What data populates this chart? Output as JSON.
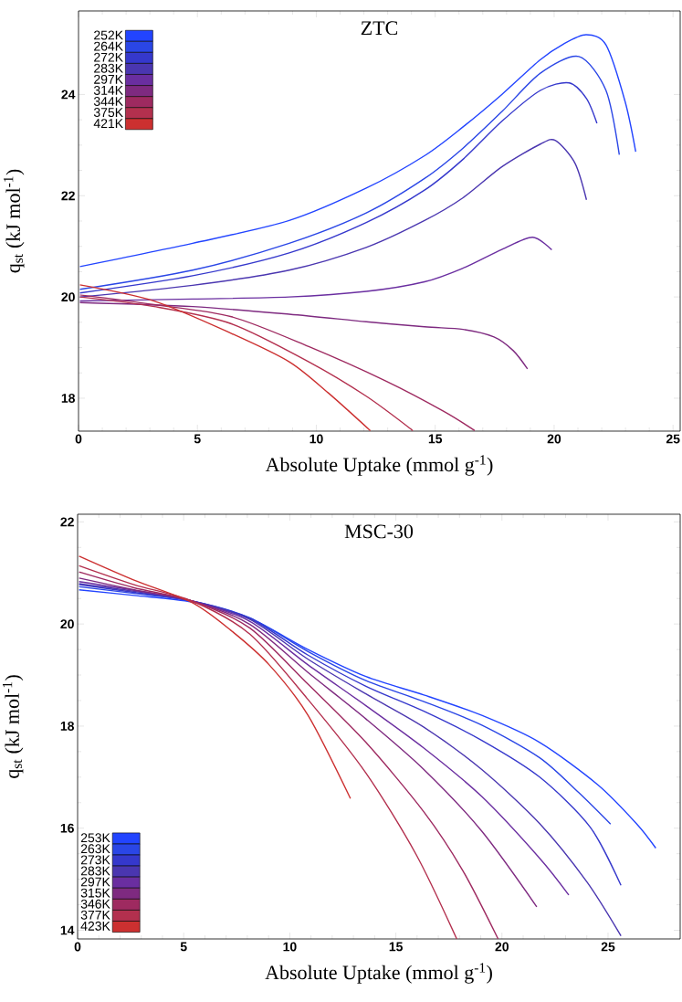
{
  "chart_data": [
    {
      "type": "line",
      "title": "ZTC",
      "xlabel": "Absolute Uptake (mmol g$^{-1}$)",
      "ylabel": "q$_{st}$ (kJ mol$^{-1}$)",
      "xlim": [
        0,
        25.3
      ],
      "ylim": [
        17.35,
        25.65
      ],
      "xticks": [
        0,
        5,
        10,
        15,
        20,
        25
      ],
      "yticks": [
        18,
        20,
        22,
        24
      ],
      "legend": "top left",
      "series": [
        {
          "name": "252K",
          "color": "#2244ff",
          "x": [
            0.06,
            4.8,
            8.86,
            12.1,
            14.55,
            16.17,
            17.8,
            19.4,
            20.4,
            21.35,
            22.18,
            22.99,
            23.43
          ],
          "values": [
            20.6,
            21.06,
            21.51,
            22.15,
            22.79,
            23.36,
            24.0,
            24.68,
            25.0,
            25.18,
            24.98,
            23.85,
            22.87
          ]
        },
        {
          "name": "264K",
          "color": "#2a46e6",
          "x": [
            0.06,
            4.8,
            8.86,
            12.1,
            14.55,
            16.17,
            17.8,
            19.42,
            21.04,
            22.18,
            22.74
          ],
          "values": [
            20.15,
            20.53,
            21.06,
            21.66,
            22.34,
            22.94,
            23.66,
            24.42,
            24.75,
            24.08,
            22.81
          ]
        },
        {
          "name": "272K",
          "color": "#3538cc",
          "x": [
            0.06,
            4.8,
            8.86,
            12.1,
            14.55,
            16.17,
            17.8,
            19.42,
            20.63,
            21.36,
            21.8
          ],
          "values": [
            20.08,
            20.42,
            20.87,
            21.47,
            22.11,
            22.72,
            23.47,
            24.08,
            24.23,
            23.92,
            23.43
          ]
        },
        {
          "name": "283K",
          "color": "#4a36b0",
          "x": [
            0.06,
            4.8,
            8.86,
            12.1,
            14.55,
            16.17,
            17.8,
            19.42,
            20.06,
            20.88,
            21.36
          ],
          "values": [
            20.0,
            20.23,
            20.53,
            20.98,
            21.51,
            21.96,
            22.57,
            23.02,
            23.09,
            22.64,
            21.92
          ]
        },
        {
          "name": "297K",
          "color": "#6a2ea0",
          "x": [
            0.06,
            4.8,
            8.86,
            12.1,
            14.55,
            16.17,
            17.8,
            19.09,
            19.9
          ],
          "values": [
            19.92,
            19.96,
            20.0,
            20.11,
            20.3,
            20.57,
            20.94,
            21.18,
            20.93
          ]
        },
        {
          "name": "314K",
          "color": "#7e2a80",
          "x": [
            0.06,
            4.8,
            8.86,
            12.1,
            14.55,
            16.17,
            17.47,
            18.28,
            18.88
          ],
          "values": [
            19.89,
            19.81,
            19.66,
            19.51,
            19.41,
            19.36,
            19.21,
            18.94,
            18.58
          ]
        },
        {
          "name": "344K",
          "color": "#9e2a60",
          "x": [
            0.06,
            3.18,
            6.43,
            9.68,
            12.92,
            15.36,
            16.66
          ],
          "values": [
            20.04,
            19.85,
            19.61,
            19.02,
            18.34,
            17.74,
            17.36
          ]
        },
        {
          "name": "375K",
          "color": "#b3304e",
          "x": [
            0.06,
            3.18,
            6.43,
            9.68,
            12.1,
            14.06
          ],
          "values": [
            20.0,
            19.81,
            19.47,
            18.72,
            18.04,
            17.36
          ]
        },
        {
          "name": "421K",
          "color": "#cc3030",
          "x": [
            0.06,
            3.18,
            6.43,
            8.86,
            10.49,
            12.27
          ],
          "values": [
            20.24,
            19.92,
            19.28,
            18.72,
            18.11,
            17.36
          ]
        }
      ]
    },
    {
      "type": "line",
      "title": "MSC-30",
      "xlabel": "Absolute Uptake (mmol g$^{-1}$)",
      "ylabel": "q$_{st}$ (kJ mol$^{-1}$)",
      "xlim": [
        0,
        28.4
      ],
      "ylim": [
        13.83,
        22.15
      ],
      "xticks": [
        0,
        5,
        10,
        15,
        20,
        25
      ],
      "yticks": [
        14,
        16,
        18,
        20,
        22
      ],
      "legend": "bottom left",
      "series": [
        {
          "name": "253K",
          "color": "#2244ff",
          "x": [
            0.07,
            2.66,
            5.39,
            8.12,
            10.86,
            13.59,
            16.32,
            19.05,
            21.78,
            24.52,
            26.34,
            27.25
          ],
          "values": [
            20.67,
            20.56,
            20.43,
            20.11,
            19.5,
            18.97,
            18.61,
            18.21,
            17.68,
            16.85,
            16.09,
            15.61
          ]
        },
        {
          "name": "263K",
          "color": "#2a46e6",
          "x": [
            0.07,
            2.66,
            5.39,
            8.12,
            10.86,
            13.59,
            16.32,
            19.05,
            21.78,
            23.61,
            25.12
          ],
          "values": [
            20.73,
            20.6,
            20.45,
            20.12,
            19.46,
            18.89,
            18.48,
            18.02,
            17.38,
            16.7,
            16.08
          ]
        },
        {
          "name": "273K",
          "color": "#3538cc",
          "x": [
            0.07,
            2.66,
            5.39,
            8.12,
            10.86,
            13.59,
            16.32,
            19.05,
            21.78,
            24.16,
            25.61
          ],
          "values": [
            20.77,
            20.62,
            20.45,
            20.11,
            19.39,
            18.78,
            18.29,
            17.72,
            17.0,
            16.02,
            14.88
          ]
        },
        {
          "name": "283K",
          "color": "#4a36b0",
          "x": [
            0.07,
            2.66,
            5.39,
            8.12,
            10.86,
            13.59,
            16.32,
            19.05,
            21.78,
            24.0,
            25.61
          ],
          "values": [
            20.79,
            20.64,
            20.45,
            20.09,
            19.31,
            18.63,
            17.98,
            17.15,
            16.09,
            14.95,
            13.89
          ]
        },
        {
          "name": "297K",
          "color": "#6a2ea0",
          "x": [
            0.07,
            2.66,
            5.39,
            8.12,
            10.86,
            13.59,
            16.32,
            19.05,
            21.78,
            23.15
          ],
          "values": [
            20.83,
            20.66,
            20.45,
            20.05,
            19.2,
            18.4,
            17.57,
            16.62,
            15.41,
            14.69
          ]
        },
        {
          "name": "315K",
          "color": "#7e2a80",
          "x": [
            0.07,
            2.66,
            5.39,
            8.12,
            10.86,
            13.59,
            16.32,
            19.05,
            21.64
          ],
          "values": [
            20.9,
            20.67,
            20.45,
            19.99,
            19.05,
            18.14,
            17.15,
            15.94,
            14.46
          ]
        },
        {
          "name": "346K",
          "color": "#9e2a60",
          "x": [
            0.07,
            2.66,
            5.39,
            8.12,
            10.86,
            13.59,
            16.32,
            18.14,
            19.82
          ],
          "values": [
            21.02,
            20.71,
            20.45,
            19.92,
            18.82,
            17.68,
            16.32,
            15.18,
            13.83
          ]
        },
        {
          "name": "377K",
          "color": "#b3304e",
          "x": [
            0.07,
            2.66,
            5.39,
            8.12,
            10.86,
            13.59,
            15.96,
            17.87
          ],
          "values": [
            21.14,
            20.77,
            20.45,
            19.8,
            18.52,
            17.08,
            15.48,
            13.83
          ]
        },
        {
          "name": "423K",
          "color": "#cc3030",
          "x": [
            0.07,
            2.66,
            5.39,
            7.21,
            9.03,
            10.86,
            12.86
          ],
          "values": [
            21.33,
            20.86,
            20.42,
            19.88,
            19.2,
            18.21,
            16.58
          ]
        }
      ]
    }
  ]
}
